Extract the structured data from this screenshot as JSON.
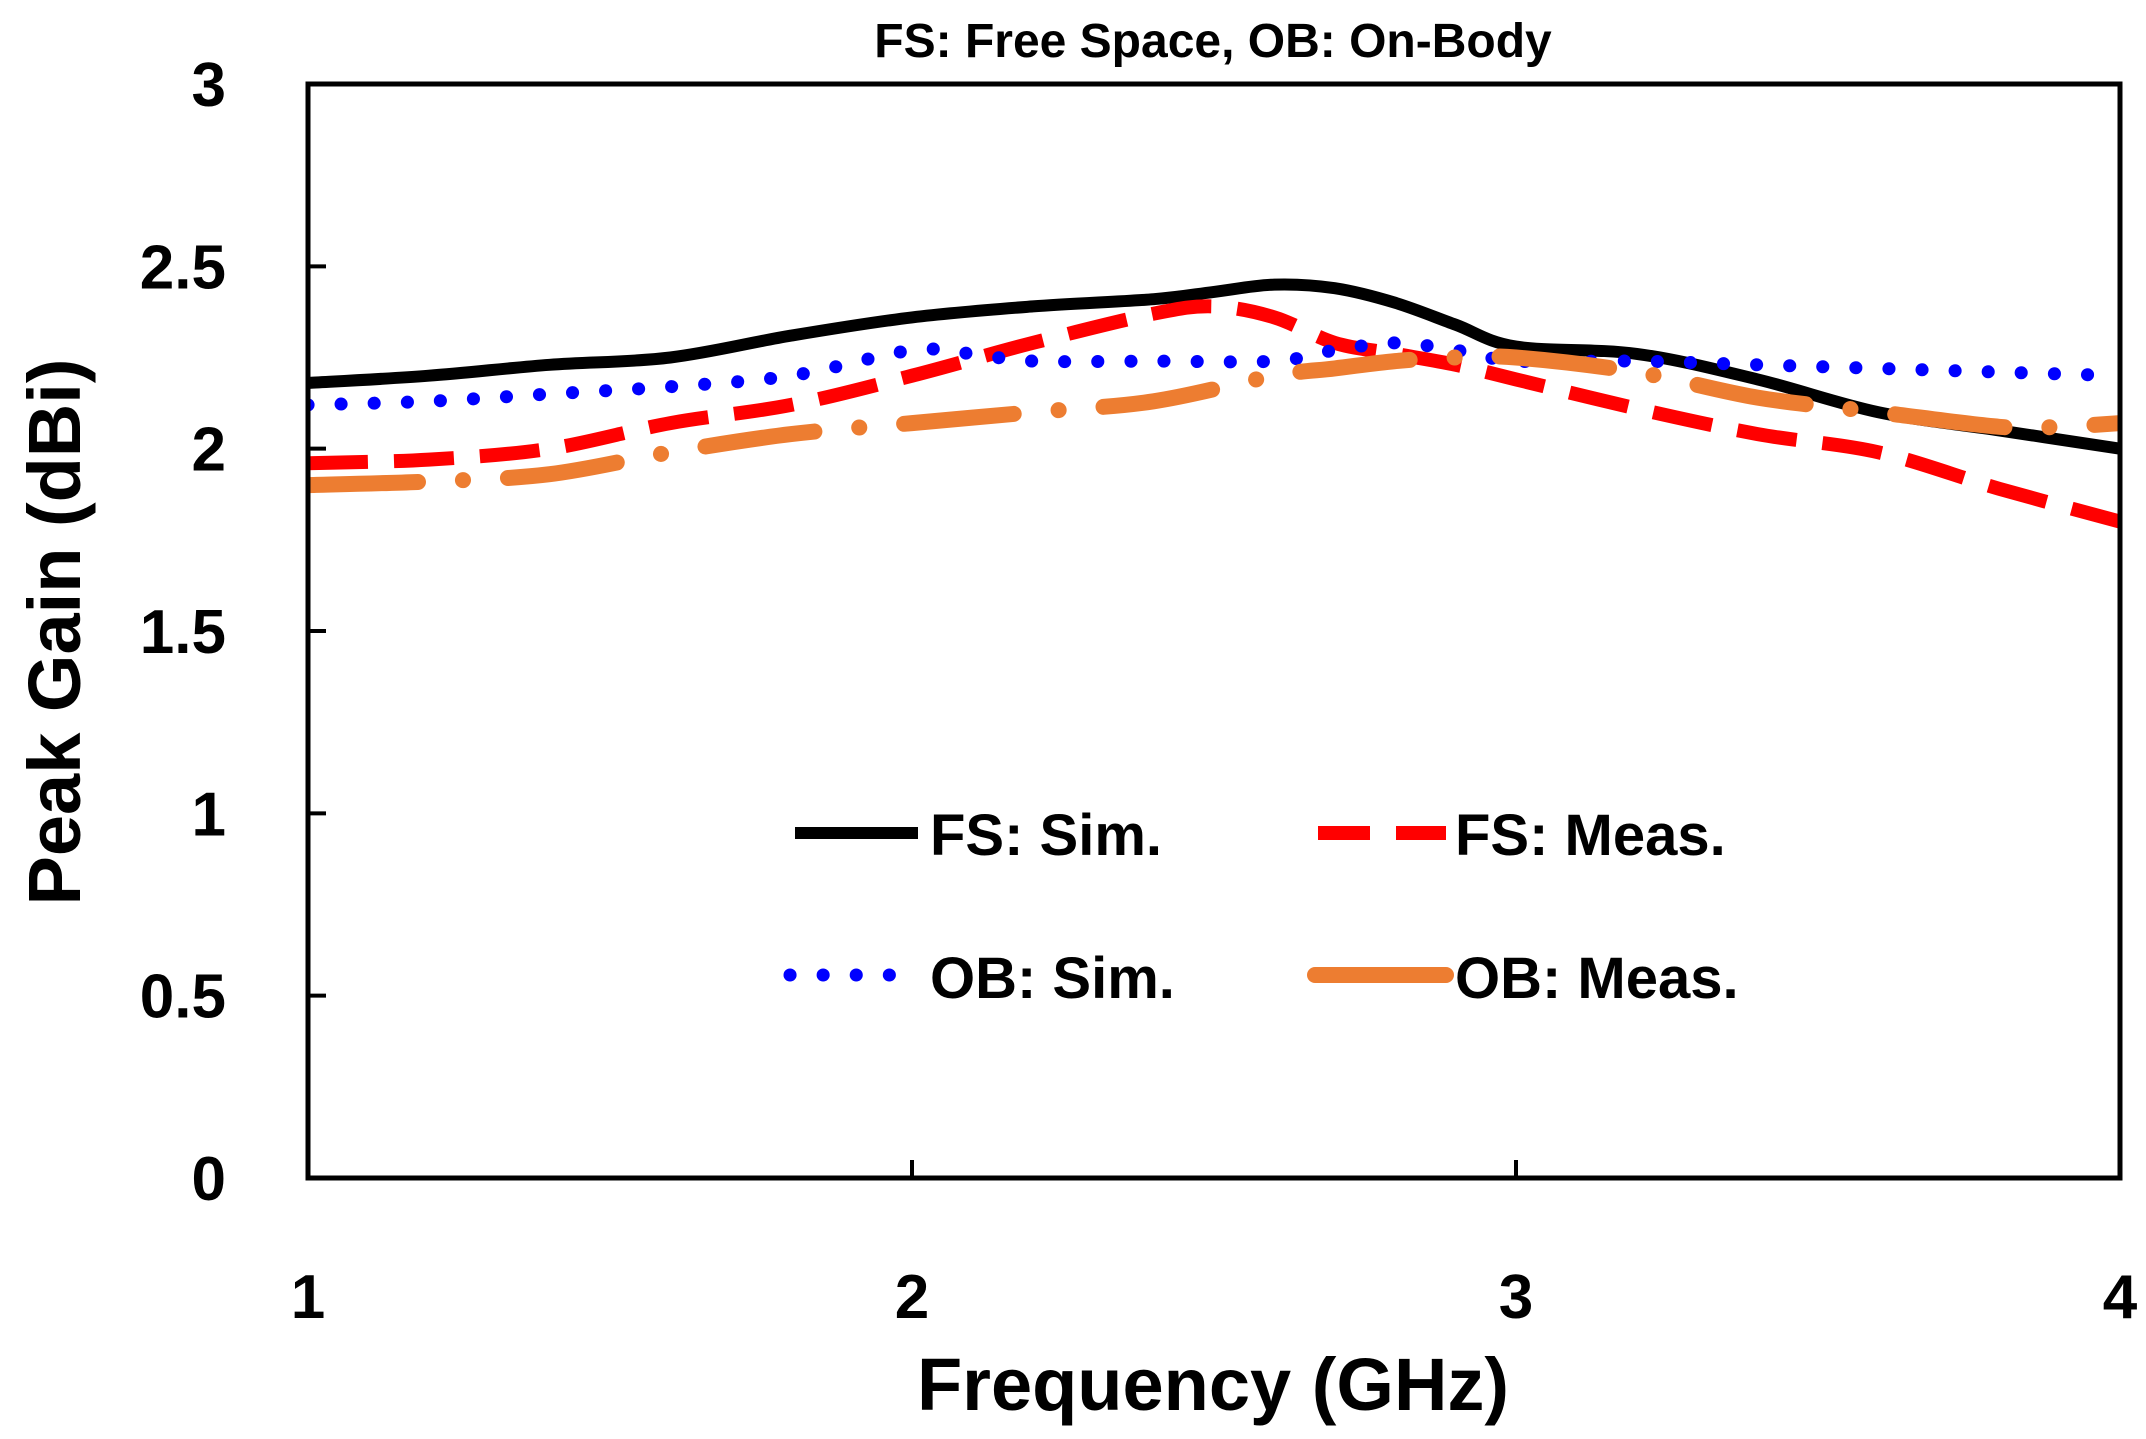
{
  "chart_data": {
    "type": "line",
    "title": "FS: Free Space, OB: On-Body",
    "xlabel": "Frequency (GHz)",
    "ylabel": "Peak Gain (dBi)",
    "xlim": [
      1,
      4
    ],
    "ylim": [
      0,
      3
    ],
    "xticks": [
      "1",
      "2",
      "3",
      "4"
    ],
    "yticks": [
      "0",
      "0.5",
      "1",
      "1.5",
      "2",
      "2.5",
      "3"
    ],
    "grid": false,
    "legend_placement": "center",
    "series": [
      {
        "name": "FS: Sim.",
        "color": "#000000",
        "style": "solid",
        "x": [
          1.0,
          1.2,
          1.4,
          1.6,
          1.8,
          2.0,
          2.2,
          2.4,
          2.5,
          2.6,
          2.7,
          2.8,
          2.9,
          3.0,
          3.2,
          3.4,
          3.6,
          3.8,
          4.0
        ],
        "y": [
          2.18,
          2.2,
          2.23,
          2.25,
          2.31,
          2.36,
          2.39,
          2.41,
          2.43,
          2.45,
          2.44,
          2.4,
          2.34,
          2.28,
          2.26,
          2.19,
          2.1,
          2.05,
          2.0
        ]
      },
      {
        "name": "FS: Meas.",
        "color": "#ff0000",
        "style": "dashed",
        "x": [
          1.0,
          1.2,
          1.4,
          1.6,
          1.8,
          2.0,
          2.2,
          2.4,
          2.5,
          2.6,
          2.7,
          2.8,
          2.9,
          3.0,
          3.2,
          3.4,
          3.6,
          3.8,
          4.0
        ],
        "y": [
          1.96,
          1.97,
          2.0,
          2.07,
          2.12,
          2.2,
          2.29,
          2.37,
          2.39,
          2.36,
          2.29,
          2.26,
          2.23,
          2.19,
          2.11,
          2.04,
          1.99,
          1.89,
          1.8
        ]
      },
      {
        "name": "OB: Sim.",
        "color": "#0000ff",
        "style": "dotted",
        "x": [
          1.0,
          1.2,
          1.4,
          1.6,
          1.8,
          2.0,
          2.1,
          2.2,
          2.4,
          2.6,
          2.7,
          2.8,
          2.9,
          3.0,
          3.2,
          3.4,
          3.6,
          3.8,
          4.0
        ],
        "y": [
          2.12,
          2.13,
          2.15,
          2.17,
          2.2,
          2.27,
          2.26,
          2.24,
          2.24,
          2.24,
          2.27,
          2.29,
          2.27,
          2.24,
          2.24,
          2.23,
          2.22,
          2.21,
          2.2
        ]
      },
      {
        "name": "OB: Meas.",
        "color": "#ed7d31",
        "style": "long-dash-dot",
        "x": [
          1.0,
          1.2,
          1.4,
          1.6,
          1.8,
          2.0,
          2.2,
          2.4,
          2.6,
          2.7,
          2.8,
          2.9,
          3.0,
          3.2,
          3.4,
          3.6,
          3.8,
          3.9,
          4.0
        ],
        "y": [
          1.9,
          1.91,
          1.93,
          1.99,
          2.04,
          2.07,
          2.1,
          2.13,
          2.2,
          2.22,
          2.24,
          2.25,
          2.25,
          2.21,
          2.14,
          2.1,
          2.06,
          2.06,
          2.07
        ]
      }
    ]
  }
}
